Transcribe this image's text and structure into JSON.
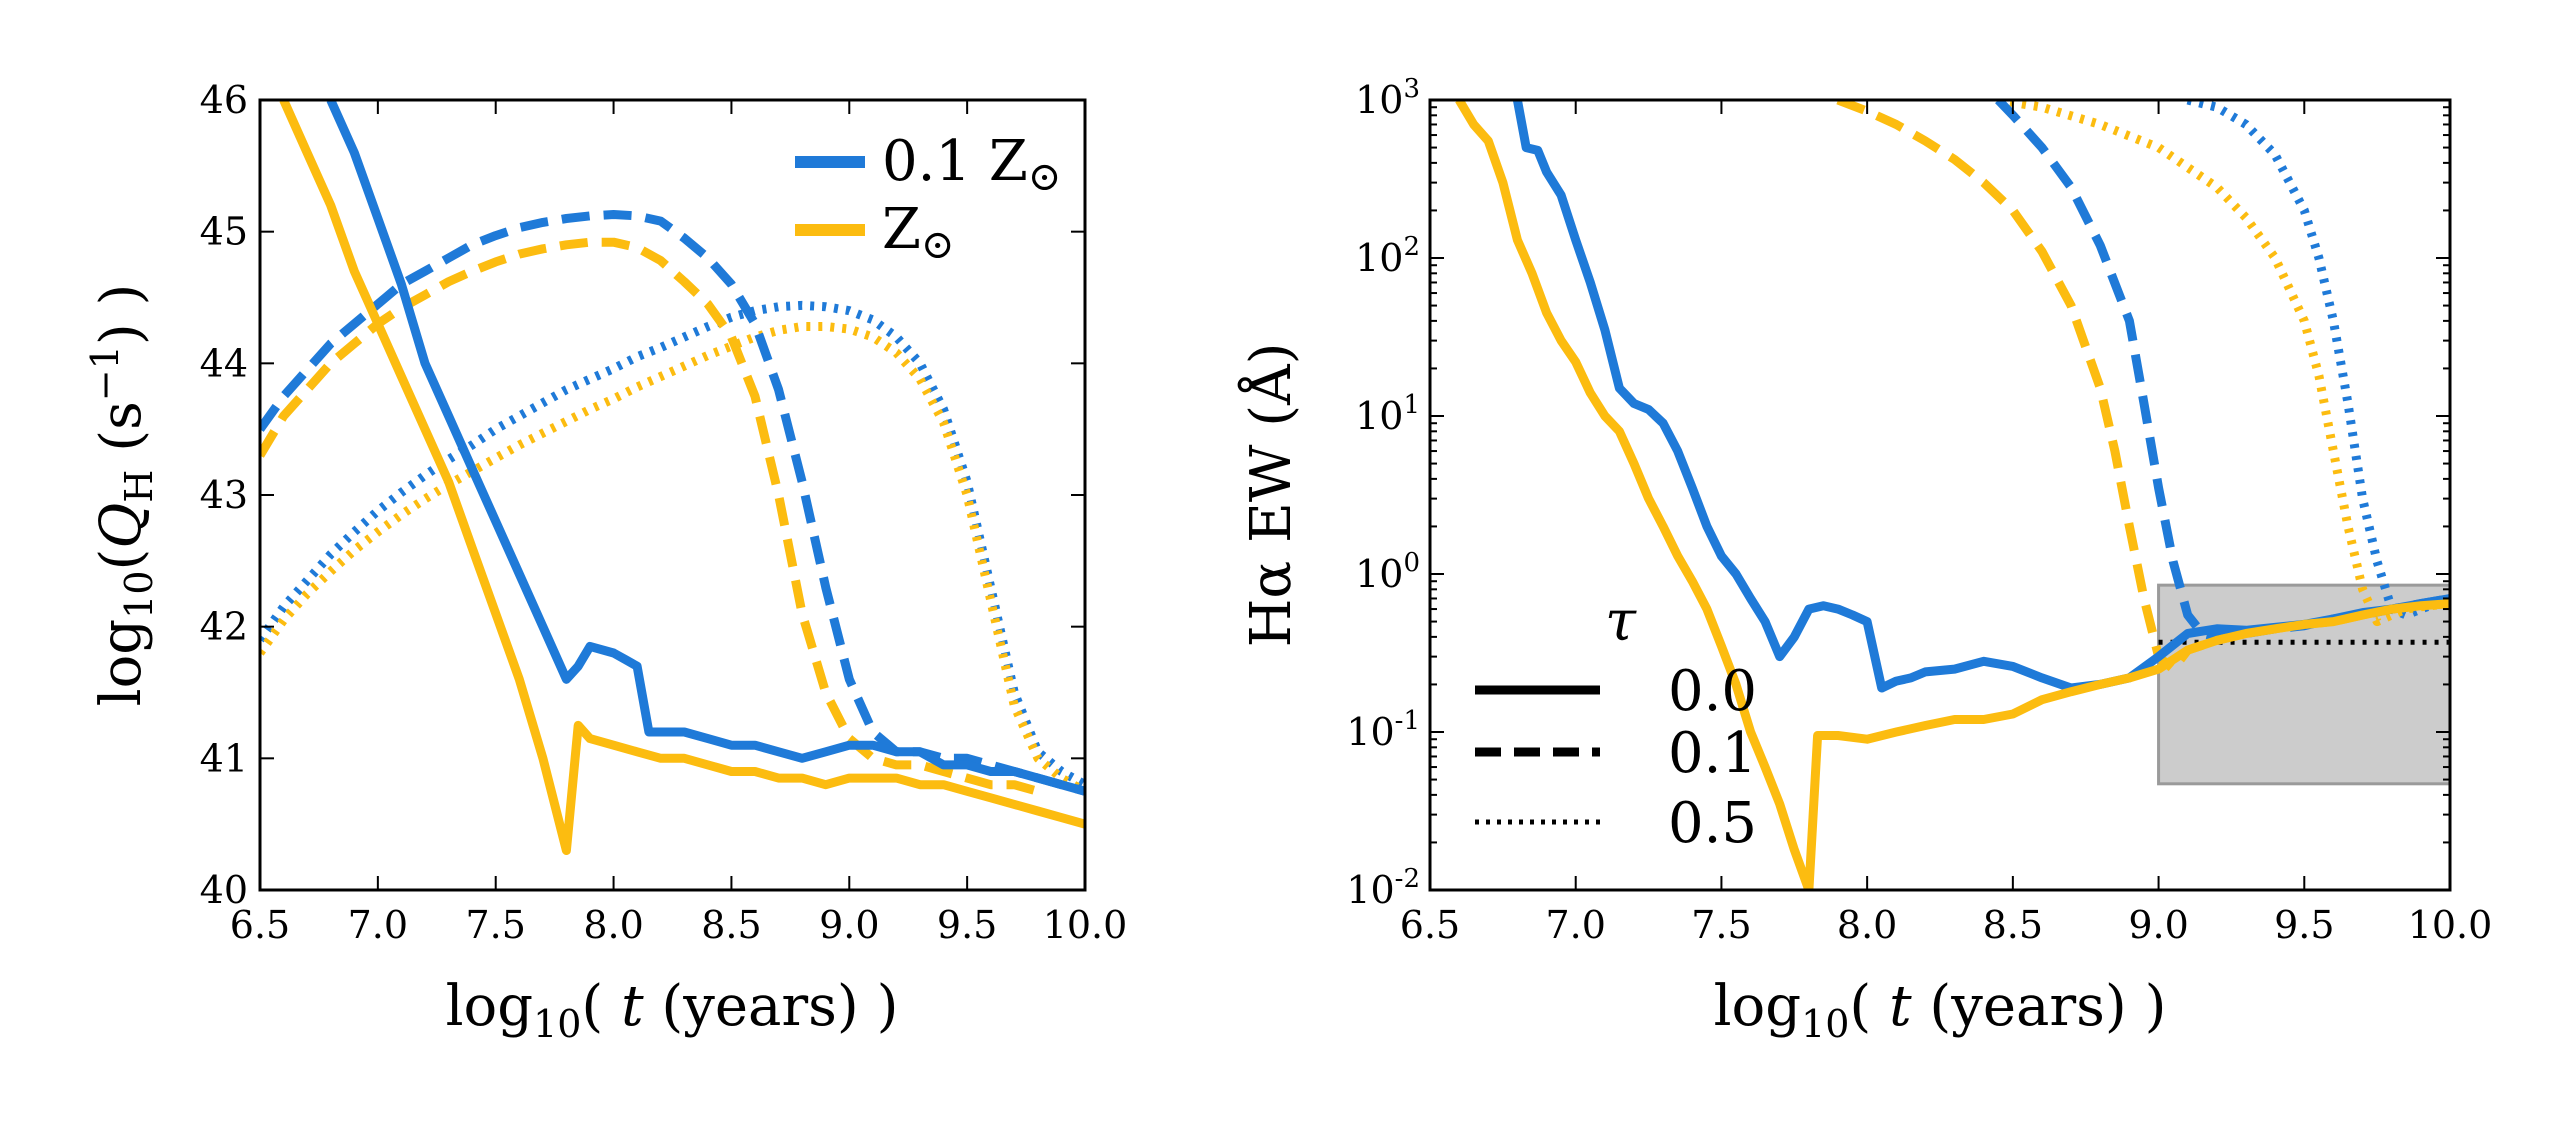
{
  "chart_data": [
    {
      "type": "line",
      "panel": "left",
      "xlabel": "log10( t (years) )",
      "ylabel": "log10(QH (s^-1))",
      "xlim": [
        6.5,
        10.0
      ],
      "ylim": [
        40,
        46
      ],
      "xticks": [
        "6.5",
        "7.0",
        "7.5",
        "8.0",
        "8.5",
        "9.0",
        "9.5",
        "10.0"
      ],
      "yticks": [
        "40",
        "41",
        "42",
        "43",
        "44",
        "45",
        "46"
      ],
      "legend": {
        "position": "top-right",
        "entries": [
          {
            "label_main": "0.1 Z",
            "label_sub": "⊙",
            "color": "#1f7ad8"
          },
          {
            "label_main": "Z",
            "label_sub": "⊙",
            "color": "#fcbc10"
          }
        ]
      },
      "series": [
        {
          "name": "0.1 Zsun, tau=0.0",
          "color": "#1f7ad8",
          "style": "solid",
          "x": [
            6.8,
            6.9,
            7.0,
            7.1,
            7.2,
            7.3,
            7.4,
            7.5,
            7.6,
            7.7,
            7.8,
            7.85,
            7.9,
            8.0,
            8.05,
            8.1,
            8.15,
            8.2,
            8.3,
            8.4,
            8.5,
            8.6,
            8.7,
            8.8,
            8.9,
            9.0,
            9.1,
            9.2,
            9.3,
            9.4,
            9.5,
            9.6,
            9.7,
            9.8,
            9.9,
            10.0
          ],
          "y": [
            46.0,
            45.6,
            45.1,
            44.6,
            44.0,
            43.6,
            43.2,
            42.8,
            42.4,
            42.0,
            41.6,
            41.7,
            41.85,
            41.8,
            41.75,
            41.7,
            41.2,
            41.2,
            41.2,
            41.15,
            41.1,
            41.1,
            41.05,
            41.0,
            41.05,
            41.1,
            41.1,
            41.05,
            41.05,
            40.95,
            40.95,
            40.9,
            40.9,
            40.85,
            40.8,
            40.75
          ]
        },
        {
          "name": "Zsun, tau=0.0",
          "color": "#fcbc10",
          "style": "solid",
          "x": [
            6.6,
            6.7,
            6.8,
            6.9,
            7.0,
            7.1,
            7.2,
            7.3,
            7.4,
            7.5,
            7.6,
            7.7,
            7.8,
            7.85,
            7.9,
            8.0,
            8.1,
            8.2,
            8.3,
            8.4,
            8.5,
            8.6,
            8.7,
            8.8,
            8.9,
            9.0,
            9.1,
            9.2,
            9.3,
            9.4,
            9.5,
            9.6,
            9.7,
            9.8,
            9.9,
            10.0
          ],
          "y": [
            46.0,
            45.6,
            45.2,
            44.7,
            44.3,
            43.9,
            43.5,
            43.1,
            42.6,
            42.1,
            41.6,
            41.0,
            40.3,
            41.25,
            41.15,
            41.1,
            41.05,
            41.0,
            41.0,
            40.95,
            40.9,
            40.9,
            40.85,
            40.85,
            40.8,
            40.85,
            40.85,
            40.85,
            40.8,
            40.8,
            40.75,
            40.7,
            40.65,
            40.6,
            40.55,
            40.5
          ]
        },
        {
          "name": "0.1 Zsun, tau=0.1",
          "color": "#1f7ad8",
          "style": "dashed",
          "x": [
            6.5,
            6.6,
            6.7,
            6.8,
            6.9,
            7.0,
            7.1,
            7.2,
            7.3,
            7.4,
            7.5,
            7.6,
            7.7,
            7.8,
            7.9,
            8.0,
            8.1,
            8.2,
            8.3,
            8.4,
            8.5,
            8.6,
            8.7,
            8.8,
            8.9,
            9.0,
            9.1,
            9.2,
            9.3,
            9.4,
            9.5,
            9.6,
            9.7,
            9.8,
            9.9,
            10.0
          ],
          "y": [
            43.5,
            43.75,
            43.95,
            44.15,
            44.3,
            44.45,
            44.6,
            44.7,
            44.8,
            44.9,
            44.97,
            45.03,
            45.07,
            45.1,
            45.12,
            45.13,
            45.12,
            45.08,
            44.95,
            44.8,
            44.6,
            44.3,
            43.8,
            43.1,
            42.3,
            41.6,
            41.2,
            41.05,
            41.05,
            41.0,
            41.0,
            40.95,
            40.9,
            40.85,
            40.8,
            40.75
          ]
        },
        {
          "name": "Zsun, tau=0.1",
          "color": "#fcbc10",
          "style": "dashed",
          "x": [
            6.5,
            6.6,
            6.7,
            6.8,
            6.9,
            7.0,
            7.1,
            7.2,
            7.3,
            7.4,
            7.5,
            7.6,
            7.7,
            7.8,
            7.9,
            8.0,
            8.1,
            8.2,
            8.3,
            8.4,
            8.5,
            8.6,
            8.7,
            8.8,
            8.9,
            9.0,
            9.1,
            9.2,
            9.3,
            9.4,
            9.5,
            9.6,
            9.7,
            9.8
          ],
          "y": [
            43.3,
            43.6,
            43.8,
            44.0,
            44.15,
            44.3,
            44.42,
            44.52,
            44.62,
            44.7,
            44.77,
            44.83,
            44.87,
            44.9,
            44.92,
            44.92,
            44.88,
            44.78,
            44.62,
            44.45,
            44.2,
            43.75,
            43.0,
            42.1,
            41.5,
            41.15,
            41.0,
            40.95,
            40.95,
            40.9,
            40.85,
            40.8,
            40.8,
            40.75
          ]
        },
        {
          "name": "0.1 Zsun, tau=0.5",
          "color": "#1f7ad8",
          "style": "dotted",
          "x": [
            6.5,
            6.6,
            6.7,
            6.8,
            6.9,
            7.0,
            7.1,
            7.2,
            7.3,
            7.4,
            7.5,
            7.6,
            7.7,
            7.8,
            7.9,
            8.0,
            8.1,
            8.2,
            8.3,
            8.4,
            8.5,
            8.6,
            8.7,
            8.8,
            8.9,
            9.0,
            9.1,
            9.2,
            9.3,
            9.4,
            9.5,
            9.6,
            9.7,
            9.8,
            9.9,
            10.0
          ],
          "y": [
            41.9,
            42.15,
            42.35,
            42.55,
            42.72,
            42.88,
            43.02,
            43.15,
            43.27,
            43.38,
            43.5,
            43.6,
            43.7,
            43.8,
            43.88,
            43.96,
            44.05,
            44.12,
            44.2,
            44.28,
            44.35,
            44.4,
            44.43,
            44.44,
            44.43,
            44.4,
            44.33,
            44.2,
            44.0,
            43.65,
            43.1,
            42.3,
            41.5,
            41.05,
            40.9,
            40.8
          ]
        },
        {
          "name": "Zsun, tau=0.5",
          "color": "#fcbc10",
          "style": "dotted",
          "x": [
            6.5,
            6.6,
            6.7,
            6.8,
            6.9,
            7.0,
            7.1,
            7.2,
            7.3,
            7.4,
            7.5,
            7.6,
            7.7,
            7.8,
            7.9,
            8.0,
            8.1,
            8.2,
            8.3,
            8.4,
            8.5,
            8.6,
            8.7,
            8.8,
            8.9,
            9.0,
            9.1,
            9.2,
            9.3,
            9.4,
            9.5,
            9.6,
            9.7,
            9.8,
            9.9,
            10.0
          ],
          "y": [
            41.8,
            42.05,
            42.25,
            42.42,
            42.58,
            42.72,
            42.85,
            42.97,
            43.08,
            43.18,
            43.28,
            43.38,
            43.47,
            43.56,
            43.65,
            43.73,
            43.82,
            43.9,
            43.98,
            44.06,
            44.13,
            44.2,
            44.25,
            44.28,
            44.28,
            44.26,
            44.2,
            44.08,
            43.88,
            43.55,
            43.0,
            42.2,
            41.4,
            41.0,
            40.85,
            40.75
          ]
        }
      ]
    },
    {
      "type": "line",
      "panel": "right",
      "xlabel": "log10( t (years) )",
      "ylabel": "Hα EW (Å)",
      "yscale": "log",
      "xlim": [
        6.5,
        10.0
      ],
      "ylim": [
        0.01,
        1000
      ],
      "xticks": [
        "6.5",
        "7.0",
        "7.5",
        "8.0",
        "8.5",
        "9.0",
        "9.5",
        "10.0"
      ],
      "yticks": [
        {
          "base": "10",
          "exp": "-2",
          "value": 0.01
        },
        {
          "base": "10",
          "exp": "-1",
          "value": 0.1
        },
        {
          "base": "10",
          "exp": "0",
          "value": 1
        },
        {
          "base": "10",
          "exp": "1",
          "value": 10
        },
        {
          "base": "10",
          "exp": "2",
          "value": 100
        },
        {
          "base": "10",
          "exp": "3",
          "value": 1000
        }
      ],
      "legend": {
        "position": "lower-left",
        "title": "τ",
        "entries": [
          {
            "label": "0.0",
            "style": "solid"
          },
          {
            "label": "0.1",
            "style": "dashed"
          },
          {
            "label": "0.5",
            "style": "dotted"
          }
        ]
      },
      "shaded_region": {
        "x": [
          9.0,
          10.0
        ],
        "y": [
          0.047,
          0.85
        ],
        "color": "#cccccc"
      },
      "hline": {
        "y": 0.37,
        "x": [
          9.0,
          10.0
        ],
        "style": "dotted",
        "color": "#000000"
      },
      "series": [
        {
          "name": "0.1 Zsun, tau=0.0",
          "color": "#1f7ad8",
          "style": "solid",
          "x": [
            6.8,
            6.83,
            6.87,
            6.9,
            6.95,
            7.0,
            7.05,
            7.1,
            7.15,
            7.2,
            7.25,
            7.3,
            7.35,
            7.4,
            7.45,
            7.5,
            7.55,
            7.6,
            7.65,
            7.7,
            7.75,
            7.8,
            7.85,
            7.9,
            7.95,
            8.0,
            8.05,
            8.1,
            8.15,
            8.2,
            8.3,
            8.4,
            8.5,
            8.6,
            8.7,
            8.8,
            8.9,
            9.0,
            9.1,
            9.2,
            9.3,
            9.4,
            9.5,
            9.6,
            9.7,
            9.8,
            9.9,
            10.0
          ],
          "y": [
            1000,
            500,
            480,
            350,
            250,
            130,
            70,
            35,
            15,
            12,
            11,
            9,
            6,
            3.5,
            2.0,
            1.3,
            1.0,
            0.7,
            0.5,
            0.3,
            0.4,
            0.6,
            0.63,
            0.6,
            0.55,
            0.5,
            0.19,
            0.21,
            0.22,
            0.24,
            0.25,
            0.28,
            0.26,
            0.22,
            0.19,
            0.2,
            0.22,
            0.3,
            0.42,
            0.45,
            0.44,
            0.46,
            0.48,
            0.52,
            0.57,
            0.6,
            0.65,
            0.7
          ]
        },
        {
          "name": "Zsun, tau=0.0",
          "color": "#fcbc10",
          "style": "solid",
          "x": [
            6.6,
            6.65,
            6.7,
            6.75,
            6.8,
            6.85,
            6.9,
            6.95,
            7.0,
            7.05,
            7.1,
            7.15,
            7.2,
            7.25,
            7.3,
            7.35,
            7.4,
            7.45,
            7.5,
            7.55,
            7.6,
            7.65,
            7.7,
            7.75,
            7.8,
            7.83,
            7.9,
            8.0,
            8.1,
            8.2,
            8.3,
            8.4,
            8.5,
            8.6,
            8.7,
            8.8,
            8.9,
            9.0,
            9.1,
            9.2,
            9.3,
            9.4,
            9.5,
            9.6,
            9.7,
            9.8,
            9.9,
            10.0
          ],
          "y": [
            1000,
            700,
            550,
            300,
            130,
            80,
            45,
            30,
            22,
            14,
            10,
            8,
            5,
            3,
            2,
            1.3,
            0.9,
            0.6,
            0.35,
            0.2,
            0.1,
            0.06,
            0.035,
            0.018,
            0.01,
            0.095,
            0.095,
            0.09,
            0.1,
            0.11,
            0.12,
            0.12,
            0.13,
            0.16,
            0.18,
            0.2,
            0.22,
            0.25,
            0.33,
            0.38,
            0.42,
            0.45,
            0.48,
            0.5,
            0.55,
            0.6,
            0.63,
            0.65
          ]
        },
        {
          "name": "0.1 Zsun, tau=0.1",
          "color": "#1f7ad8",
          "style": "dashed",
          "x": [
            8.45,
            8.5,
            8.6,
            8.7,
            8.8,
            8.9,
            8.95,
            9.0,
            9.05,
            9.1,
            9.15,
            9.2,
            9.3,
            9.4,
            9.5,
            9.6,
            9.7,
            9.8,
            9.9,
            10.0
          ],
          "y": [
            1000,
            800,
            500,
            280,
            120,
            40,
            12,
            3.5,
            1.2,
            0.55,
            0.42,
            0.4,
            0.42,
            0.45,
            0.47,
            0.52,
            0.55,
            0.6,
            0.65,
            0.7
          ]
        },
        {
          "name": "Zsun, tau=0.1",
          "color": "#fcbc10",
          "style": "dashed",
          "x": [
            7.9,
            8.0,
            8.1,
            8.2,
            8.3,
            8.4,
            8.5,
            8.6,
            8.7,
            8.8,
            8.85,
            8.9,
            8.95,
            9.0,
            9.05,
            9.1,
            9.2,
            9.3,
            9.4,
            9.5,
            9.6,
            9.7,
            9.8,
            9.9,
            10.0
          ],
          "y": [
            1000,
            850,
            700,
            550,
            420,
            300,
            200,
            110,
            50,
            15,
            6,
            2,
            0.7,
            0.3,
            0.25,
            0.33,
            0.38,
            0.42,
            0.45,
            0.48,
            0.5,
            0.55,
            0.6,
            0.63,
            0.65
          ]
        },
        {
          "name": "0.1 Zsun, tau=0.5",
          "color": "#1f7ad8",
          "style": "dotted",
          "x": [
            9.1,
            9.2,
            9.3,
            9.4,
            9.5,
            9.55,
            9.6,
            9.65,
            9.7,
            9.75,
            9.8,
            9.85,
            9.9,
            9.95,
            10.0
          ],
          "y": [
            1000,
            900,
            700,
            450,
            200,
            100,
            40,
            12,
            3,
            1.2,
            0.6,
            0.55,
            0.6,
            0.65,
            0.7
          ]
        },
        {
          "name": "Zsun, tau=0.5",
          "color": "#fcbc10",
          "style": "dotted",
          "x": [
            8.45,
            8.6,
            8.8,
            9.0,
            9.2,
            9.3,
            9.4,
            9.5,
            9.55,
            9.6,
            9.65,
            9.7,
            9.75,
            9.8,
            9.85,
            9.9,
            10.0
          ],
          "y": [
            1000,
            900,
            700,
            500,
            280,
            180,
            100,
            40,
            18,
            6,
            2,
            0.8,
            0.5,
            0.55,
            0.6,
            0.62,
            0.65
          ]
        }
      ]
    }
  ]
}
